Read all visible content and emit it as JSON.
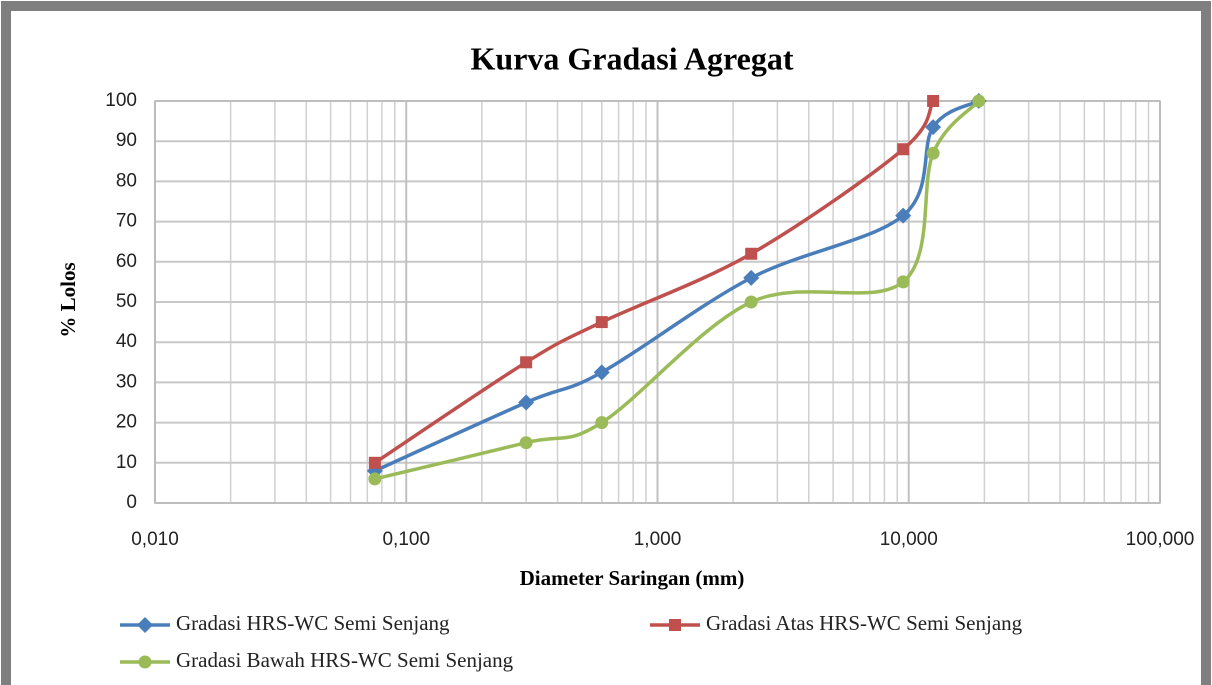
{
  "chart_data": {
    "type": "line",
    "title": "Kurva Gradasi Agregat",
    "xlabel": "Diameter Saringan (mm)",
    "ylabel": "% Lolos",
    "x": [
      0.075,
      0.3,
      0.6,
      2.36,
      9.5,
      12.5,
      19
    ],
    "xscale": "log",
    "xlim": [
      0.01,
      100
    ],
    "xticks": [
      {
        "value": 0.01,
        "label": "0,010"
      },
      {
        "value": 0.1,
        "label": "0,100"
      },
      {
        "value": 1,
        "label": "1,000"
      },
      {
        "value": 10,
        "label": "10,000"
      },
      {
        "value": 100,
        "label": "100,000"
      }
    ],
    "ylim": [
      0,
      100
    ],
    "yticks": [
      0,
      10,
      20,
      30,
      40,
      50,
      60,
      70,
      80,
      90,
      100
    ],
    "grid": true,
    "legend": "bottom",
    "series": [
      {
        "name": "Gradasi HRS-WC Semi Senjang",
        "color": "#4a7ebb",
        "marker": "diamond",
        "values": [
          8,
          25,
          32.5,
          56,
          71.5,
          93.5,
          100
        ]
      },
      {
        "name": "Gradasi Atas HRS-WC Semi Senjang",
        "color": "#c0504d",
        "marker": "square",
        "values": [
          10,
          35,
          45,
          62,
          88,
          100,
          null
        ]
      },
      {
        "name": "Gradasi Bawah HRS-WC Semi Senjang",
        "color": "#9bbb59",
        "marker": "circle",
        "values": [
          6,
          15,
          20,
          50,
          55,
          87,
          100
        ]
      }
    ]
  }
}
